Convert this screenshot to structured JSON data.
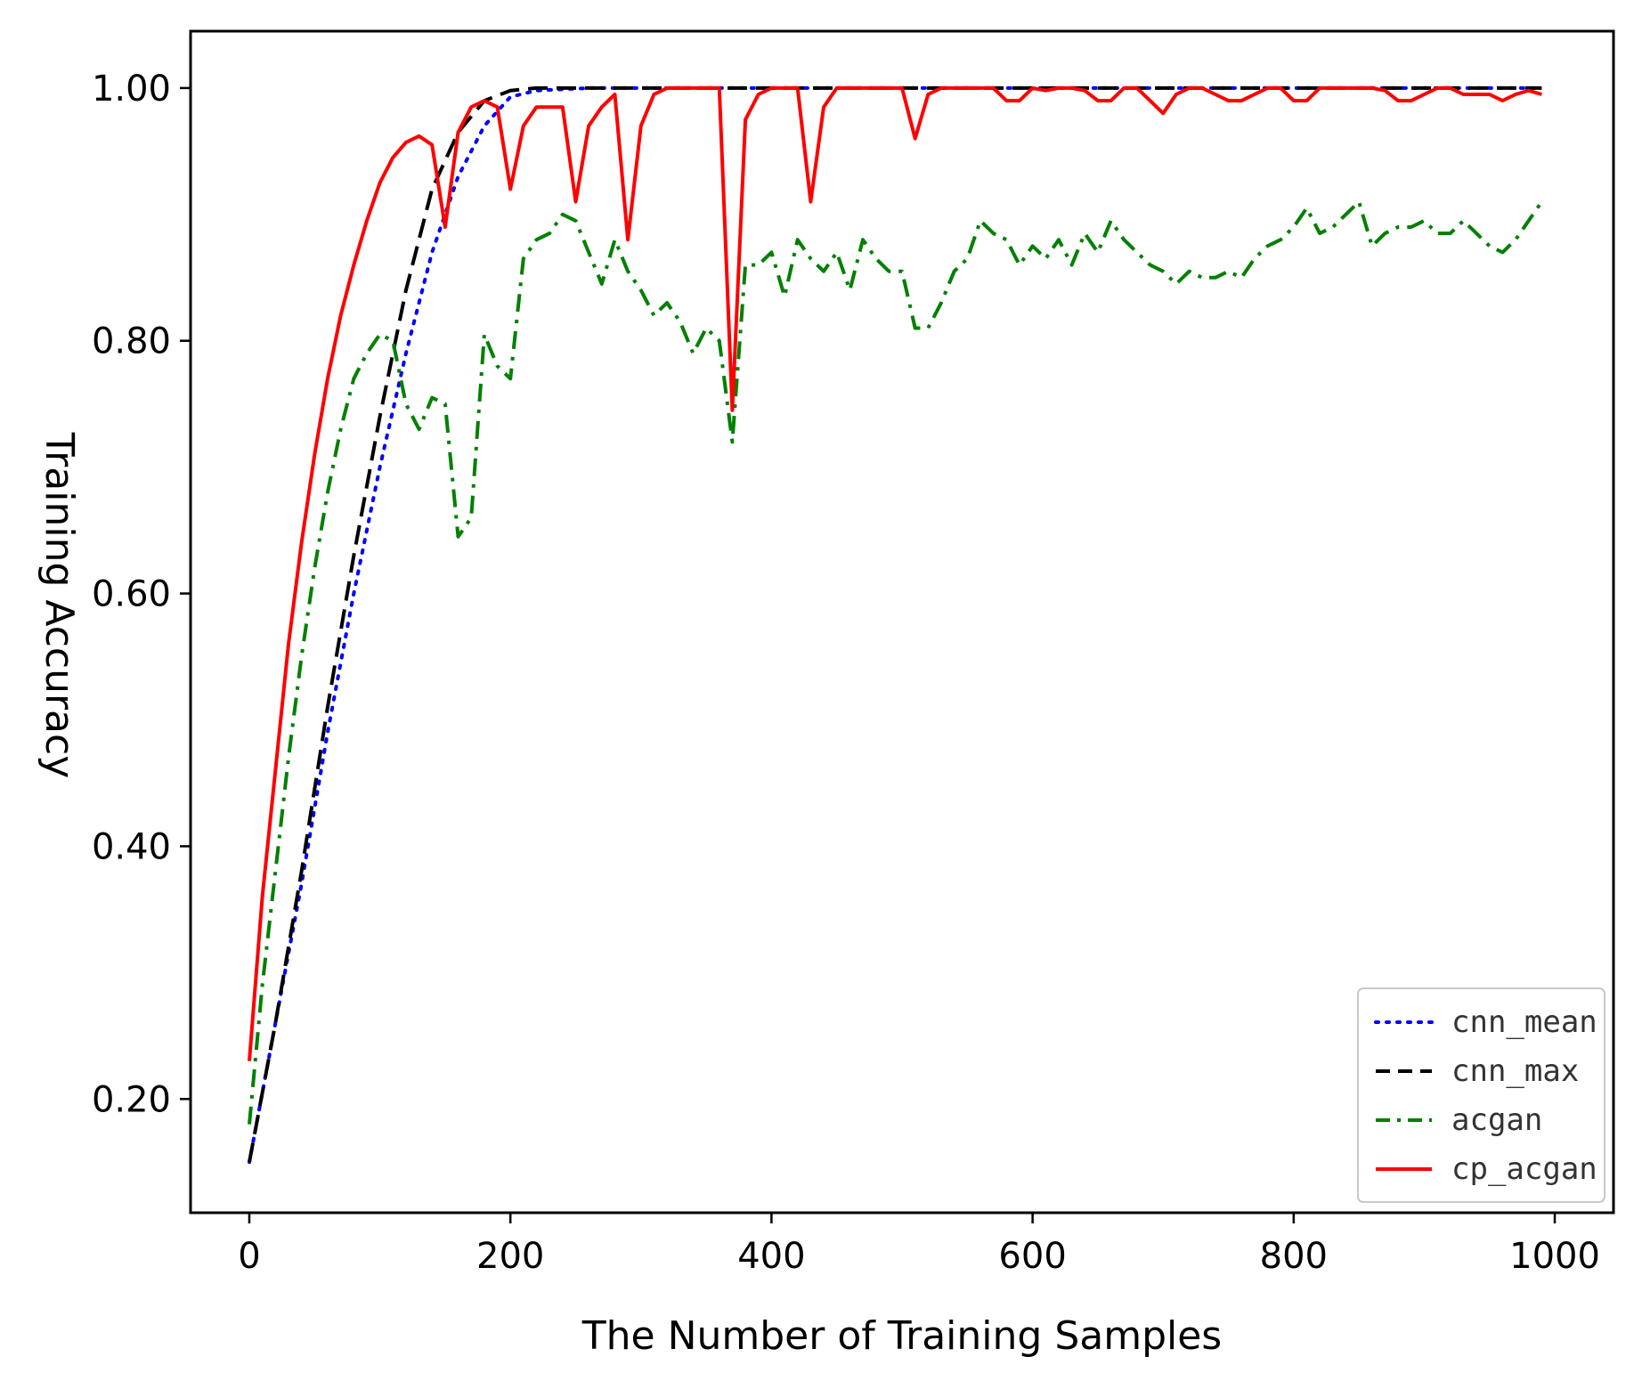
{
  "chart_data": {
    "type": "line",
    "title": "",
    "xlabel": "The Number of Training Samples",
    "ylabel": "Training Accuracy",
    "xlim": [
      -45,
      1045
    ],
    "ylim": [
      0.11,
      1.045
    ],
    "xticks": [
      0,
      200,
      400,
      600,
      800,
      1000
    ],
    "xtick_labels": [
      "0",
      "200",
      "400",
      "600",
      "800",
      "1000"
    ],
    "yticks": [
      0.2,
      0.4,
      0.6,
      0.8,
      1.0
    ],
    "ytick_labels": [
      "0.20",
      "0.40",
      "0.60",
      "0.80",
      "1.00"
    ],
    "grid": false,
    "legend_position": "lower-right",
    "series": [
      {
        "name": "cnn_mean",
        "color": "#0000ff",
        "style": "dotted",
        "x": [
          0,
          20,
          40,
          60,
          80,
          100,
          120,
          140,
          160,
          180,
          200,
          220,
          260,
          300,
          400,
          500,
          600,
          700,
          800,
          900,
          990
        ],
        "y": [
          0.15,
          0.26,
          0.37,
          0.49,
          0.6,
          0.7,
          0.79,
          0.87,
          0.93,
          0.97,
          0.993,
          0.998,
          1.0,
          1.0,
          1.0,
          1.0,
          1.0,
          1.0,
          1.0,
          1.0,
          1.0
        ]
      },
      {
        "name": "cnn_max",
        "color": "#000000",
        "style": "dashed",
        "x": [
          0,
          20,
          40,
          60,
          80,
          100,
          120,
          140,
          160,
          180,
          200,
          220,
          260,
          300,
          400,
          500,
          600,
          700,
          800,
          900,
          990
        ],
        "y": [
          0.15,
          0.26,
          0.38,
          0.51,
          0.63,
          0.74,
          0.84,
          0.92,
          0.965,
          0.99,
          0.998,
          1.0,
          1.0,
          1.0,
          1.0,
          1.0,
          1.0,
          1.0,
          1.0,
          1.0,
          1.0
        ]
      },
      {
        "name": "acgan",
        "color": "#008000",
        "style": "dashdot",
        "x": [
          0,
          10,
          20,
          30,
          40,
          50,
          60,
          70,
          80,
          90,
          100,
          110,
          120,
          130,
          140,
          150,
          160,
          170,
          180,
          190,
          200,
          210,
          220,
          230,
          240,
          250,
          260,
          270,
          280,
          290,
          300,
          310,
          320,
          330,
          340,
          350,
          360,
          370,
          380,
          390,
          400,
          410,
          420,
          430,
          440,
          450,
          460,
          470,
          480,
          490,
          500,
          510,
          520,
          530,
          540,
          550,
          560,
          570,
          580,
          590,
          600,
          610,
          620,
          630,
          640,
          650,
          660,
          670,
          680,
          690,
          700,
          710,
          720,
          730,
          740,
          750,
          760,
          770,
          780,
          790,
          800,
          810,
          820,
          830,
          840,
          850,
          860,
          870,
          880,
          890,
          900,
          910,
          920,
          930,
          940,
          950,
          960,
          970,
          980,
          990
        ],
        "y": [
          0.18,
          0.29,
          0.38,
          0.47,
          0.55,
          0.62,
          0.68,
          0.73,
          0.77,
          0.79,
          0.805,
          0.8,
          0.75,
          0.73,
          0.755,
          0.75,
          0.645,
          0.66,
          0.805,
          0.78,
          0.77,
          0.865,
          0.88,
          0.885,
          0.9,
          0.895,
          0.87,
          0.845,
          0.88,
          0.855,
          0.84,
          0.82,
          0.83,
          0.815,
          0.79,
          0.81,
          0.8,
          0.72,
          0.86,
          0.86,
          0.87,
          0.835,
          0.88,
          0.865,
          0.855,
          0.87,
          0.84,
          0.88,
          0.865,
          0.855,
          0.855,
          0.81,
          0.81,
          0.83,
          0.855,
          0.865,
          0.895,
          0.885,
          0.88,
          0.86,
          0.875,
          0.865,
          0.88,
          0.86,
          0.885,
          0.87,
          0.895,
          0.88,
          0.87,
          0.86,
          0.855,
          0.845,
          0.855,
          0.85,
          0.85,
          0.855,
          0.85,
          0.865,
          0.875,
          0.88,
          0.89,
          0.905,
          0.885,
          0.89,
          0.9,
          0.91,
          0.875,
          0.885,
          0.89,
          0.89,
          0.895,
          0.885,
          0.885,
          0.895,
          0.885,
          0.875,
          0.87,
          0.88,
          0.895,
          0.91
        ]
      },
      {
        "name": "cp_acgan",
        "color": "#ff0000",
        "style": "solid",
        "x": [
          0,
          10,
          20,
          30,
          40,
          50,
          60,
          70,
          80,
          90,
          100,
          110,
          120,
          130,
          140,
          150,
          160,
          170,
          180,
          190,
          200,
          210,
          220,
          230,
          240,
          250,
          260,
          270,
          280,
          290,
          300,
          310,
          320,
          330,
          340,
          350,
          360,
          370,
          380,
          390,
          400,
          410,
          420,
          430,
          440,
          450,
          460,
          470,
          480,
          490,
          500,
          510,
          520,
          530,
          540,
          550,
          560,
          570,
          580,
          590,
          600,
          610,
          620,
          630,
          640,
          650,
          660,
          670,
          680,
          690,
          700,
          710,
          720,
          730,
          740,
          750,
          760,
          770,
          780,
          790,
          800,
          810,
          820,
          830,
          840,
          850,
          860,
          870,
          880,
          890,
          900,
          910,
          920,
          930,
          940,
          950,
          960,
          970,
          980,
          990
        ],
        "y": [
          0.23,
          0.36,
          0.46,
          0.56,
          0.64,
          0.71,
          0.77,
          0.82,
          0.86,
          0.895,
          0.925,
          0.945,
          0.957,
          0.962,
          0.955,
          0.89,
          0.965,
          0.985,
          0.99,
          0.985,
          0.92,
          0.97,
          0.985,
          0.985,
          0.985,
          0.91,
          0.97,
          0.985,
          0.995,
          0.88,
          0.97,
          0.995,
          1.0,
          1.0,
          1.0,
          1.0,
          1.0,
          0.745,
          0.975,
          0.995,
          1.0,
          1.0,
          1.0,
          0.91,
          0.985,
          1.0,
          1.0,
          1.0,
          1.0,
          1.0,
          1.0,
          0.96,
          0.995,
          1.0,
          1.0,
          1.0,
          1.0,
          1.0,
          0.99,
          0.99,
          1.0,
          0.998,
          1.0,
          1.0,
          0.998,
          0.99,
          0.99,
          1.0,
          1.0,
          0.99,
          0.98,
          0.995,
          1.0,
          1.0,
          0.995,
          0.99,
          0.99,
          0.995,
          1.0,
          1.0,
          0.99,
          0.99,
          1.0,
          1.0,
          1.0,
          1.0,
          1.0,
          0.998,
          0.99,
          0.99,
          0.995,
          1.0,
          1.0,
          0.995,
          0.995,
          0.995,
          0.99,
          0.995,
          0.998,
          0.995
        ]
      }
    ]
  }
}
